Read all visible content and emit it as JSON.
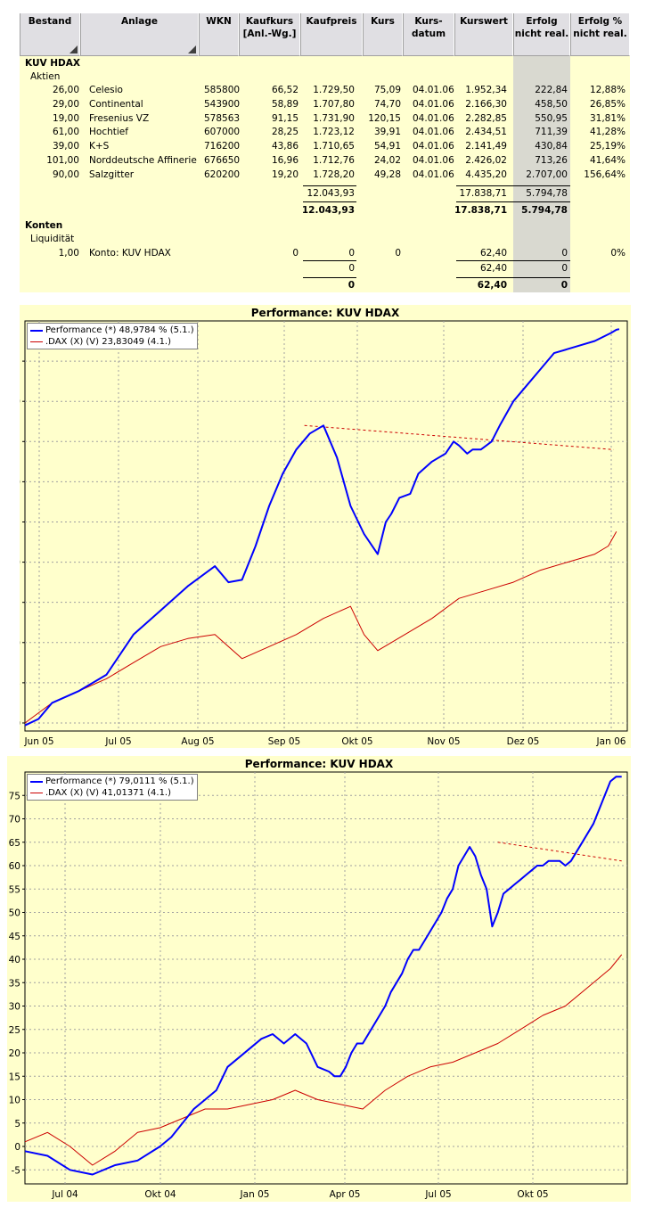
{
  "table": {
    "headers": [
      "Bestand",
      "Anlage",
      "WKN",
      "Kaufkurs\n[Anl.-Wg.]",
      "Kaufpreis",
      "Kurs",
      "Kurs-\ndatum",
      "Kurswert",
      "Erfolg\nnicht real.",
      "Erfolg %\nnicht real."
    ],
    "portfolio_name": "KUV HDAX",
    "group_stocks": "Aktien",
    "rows": [
      {
        "bestand": "26,00",
        "anlage": "Celesio",
        "wkn": "585800",
        "kaufkurs": "66,52",
        "kaufpreis": "1.729,50",
        "kurs": "75,09",
        "datum": "04.01.06",
        "kurswert": "1.952,34",
        "erfolg": "222,84",
        "erfolg_pct": "12,88%"
      },
      {
        "bestand": "29,00",
        "anlage": "Continental",
        "wkn": "543900",
        "kaufkurs": "58,89",
        "kaufpreis": "1.707,80",
        "kurs": "74,70",
        "datum": "04.01.06",
        "kurswert": "2.166,30",
        "erfolg": "458,50",
        "erfolg_pct": "26,85%"
      },
      {
        "bestand": "19,00",
        "anlage": "Fresenius VZ",
        "wkn": "578563",
        "kaufkurs": "91,15",
        "kaufpreis": "1.731,90",
        "kurs": "120,15",
        "datum": "04.01.06",
        "kurswert": "2.282,85",
        "erfolg": "550,95",
        "erfolg_pct": "31,81%"
      },
      {
        "bestand": "61,00",
        "anlage": "Hochtief",
        "wkn": "607000",
        "kaufkurs": "28,25",
        "kaufpreis": "1.723,12",
        "kurs": "39,91",
        "datum": "04.01.06",
        "kurswert": "2.434,51",
        "erfolg": "711,39",
        "erfolg_pct": "41,28%"
      },
      {
        "bestand": "39,00",
        "anlage": "K+S",
        "wkn": "716200",
        "kaufkurs": "43,86",
        "kaufpreis": "1.710,65",
        "kurs": "54,91",
        "datum": "04.01.06",
        "kurswert": "2.141,49",
        "erfolg": "430,84",
        "erfolg_pct": "25,19%"
      },
      {
        "bestand": "101,00",
        "anlage": "Norddeutsche Affinerie",
        "wkn": "676650",
        "kaufkurs": "16,96",
        "kaufpreis": "1.712,76",
        "kurs": "24,02",
        "datum": "04.01.06",
        "kurswert": "2.426,02",
        "erfolg": "713,26",
        "erfolg_pct": "41,64%"
      },
      {
        "bestand": "90,00",
        "anlage": "Salzgitter",
        "wkn": "620200",
        "kaufkurs": "19,20",
        "kaufpreis": "1.728,20",
        "kurs": "49,28",
        "datum": "04.01.06",
        "kurswert": "4.435,20",
        "erfolg": "2.707,00",
        "erfolg_pct": "156,64%"
      }
    ],
    "stocks_subtotal": {
      "kaufpreis": "12.043,93",
      "kurswert": "17.838,71",
      "erfolg": "5.794,78"
    },
    "stocks_total": {
      "kaufpreis": "12.043,93",
      "kurswert": "17.838,71",
      "erfolg": "5.794,78"
    },
    "group_accounts": "Konten",
    "sub_liquidity": "Liquidität",
    "account_row": {
      "bestand": "1,00",
      "anlage": "Konto: KUV HDAX",
      "kaufkurs": "0",
      "kaufpreis": "0",
      "kurs": "0",
      "kurswert": "62,40",
      "erfolg": "0",
      "erfolg_pct": "0%"
    },
    "accounts_subtotal": {
      "kaufpreis": "0",
      "kurswert": "62,40",
      "erfolg": "0"
    },
    "accounts_total": {
      "kaufpreis": "0",
      "kurswert": "62,40",
      "erfolg": "0"
    }
  },
  "chart_data": [
    {
      "type": "line",
      "title": "Performance: KUV HDAX",
      "ylim": [
        -1,
        50
      ],
      "yticks": [
        0,
        5,
        10,
        15,
        20,
        25,
        30,
        35,
        40,
        45
      ],
      "xtick_labels": [
        "Jun 05",
        "Jul 05",
        "Aug 05",
        "Sep 05",
        "Okt 05",
        "Nov 05",
        "Dez 05",
        "Jan 06"
      ],
      "grid": true,
      "legend_position": "top-left",
      "series": [
        {
          "name": "Performance (*) 48,9784 % (5.1.)",
          "color": "#0000ff",
          "x": [
            0,
            5,
            10,
            20,
            30,
            40,
            50,
            60,
            70,
            75,
            80,
            85,
            90,
            95,
            100,
            105,
            110,
            115,
            120,
            125,
            130,
            133,
            135,
            138,
            142,
            145,
            150,
            155,
            158,
            160,
            163,
            165,
            168,
            170,
            172,
            175,
            180,
            185,
            190,
            195,
            200,
            205,
            210,
            213,
            216,
            218,
            219
          ],
          "values": [
            -0.3,
            0.5,
            2.5,
            4,
            6,
            11,
            14,
            17,
            19.5,
            17.5,
            17.8,
            22,
            27,
            31,
            34,
            36,
            37,
            33,
            27,
            23.5,
            21,
            25,
            26,
            28,
            28.5,
            31,
            32.5,
            33.5,
            35,
            34.5,
            33.5,
            34,
            34,
            34.5,
            35,
            37,
            40,
            42,
            44,
            46,
            46.5,
            47,
            47.5,
            48,
            48.5,
            48.9,
            48.98
          ]
        },
        {
          "name": ".DAX (X) (V) 23,83049 (4.1.)",
          "color": "#cc0000",
          "x": [
            0,
            10,
            20,
            30,
            40,
            50,
            60,
            70,
            80,
            90,
            100,
            110,
            120,
            125,
            130,
            140,
            150,
            160,
            170,
            180,
            190,
            200,
            210,
            215,
            218
          ],
          "values": [
            0,
            2.5,
            4,
            5.5,
            7.5,
            9.5,
            10.5,
            11,
            8,
            9.5,
            11,
            13,
            14.5,
            11,
            9,
            11,
            13,
            15.5,
            16.5,
            17.5,
            19,
            20,
            21,
            22,
            23.8
          ]
        }
      ],
      "trend_line": {
        "x": [
          103,
          217
        ],
        "values": [
          37,
          34
        ]
      }
    },
    {
      "type": "line",
      "title": "Performance: KUV HDAX",
      "ylim": [
        -8,
        80
      ],
      "yticks": [
        -5,
        0,
        5,
        10,
        15,
        20,
        25,
        30,
        35,
        40,
        45,
        50,
        55,
        60,
        65,
        70,
        75
      ],
      "xtick_labels": [
        "Jul 04",
        "Okt 04",
        "Jan 05",
        "Apr 05",
        "Jul 05",
        "Okt 05"
      ],
      "grid": true,
      "legend_position": "top-left",
      "series": [
        {
          "name": "Performance (*) 79,0111 % (5.1.)",
          "color": "#0000ff",
          "x": [
            0,
            20,
            40,
            60,
            80,
            100,
            120,
            130,
            140,
            150,
            160,
            170,
            180,
            190,
            200,
            210,
            220,
            230,
            240,
            250,
            260,
            270,
            275,
            280,
            285,
            290,
            295,
            300,
            305,
            310,
            315,
            320,
            325,
            330,
            335,
            340,
            345,
            350,
            355,
            360,
            365,
            370,
            375,
            380,
            385,
            390,
            395,
            400,
            405,
            410,
            415,
            420,
            425,
            430,
            435,
            440,
            445,
            450,
            455,
            460,
            465,
            470,
            475,
            480,
            485,
            490,
            495,
            500,
            505,
            510,
            515,
            520,
            525,
            530
          ],
          "values": [
            -1,
            -2,
            -5,
            -6,
            -4,
            -3,
            0,
            2,
            5,
            8,
            10,
            12,
            17,
            19,
            21,
            23,
            24,
            22,
            24,
            22,
            17,
            16,
            15,
            15,
            17,
            20,
            22,
            22,
            24,
            26,
            28,
            30,
            33,
            35,
            37,
            40,
            42,
            42,
            44,
            46,
            48,
            50,
            53,
            55,
            60,
            62,
            64,
            62,
            58,
            55,
            47,
            50,
            54,
            55,
            56,
            57,
            58,
            59,
            60,
            60,
            61,
            61,
            61,
            60,
            61,
            63,
            65,
            67,
            69,
            72,
            75,
            78,
            79,
            79
          ]
        },
        {
          "name": ".DAX (X) (V) 41,01371 (4.1.)",
          "color": "#cc0000",
          "x": [
            0,
            20,
            40,
            60,
            80,
            100,
            120,
            140,
            160,
            180,
            200,
            220,
            240,
            260,
            280,
            300,
            320,
            340,
            360,
            380,
            400,
            420,
            440,
            460,
            480,
            500,
            520,
            530
          ],
          "values": [
            1,
            3,
            0,
            -4,
            -1,
            3,
            4,
            6,
            8,
            8,
            9,
            10,
            12,
            10,
            9,
            8,
            12,
            15,
            17,
            18,
            20,
            22,
            25,
            28,
            30,
            34,
            38,
            41
          ]
        }
      ],
      "trend_line": {
        "x": [
          420,
          530
        ],
        "values": [
          65,
          61
        ]
      }
    }
  ]
}
